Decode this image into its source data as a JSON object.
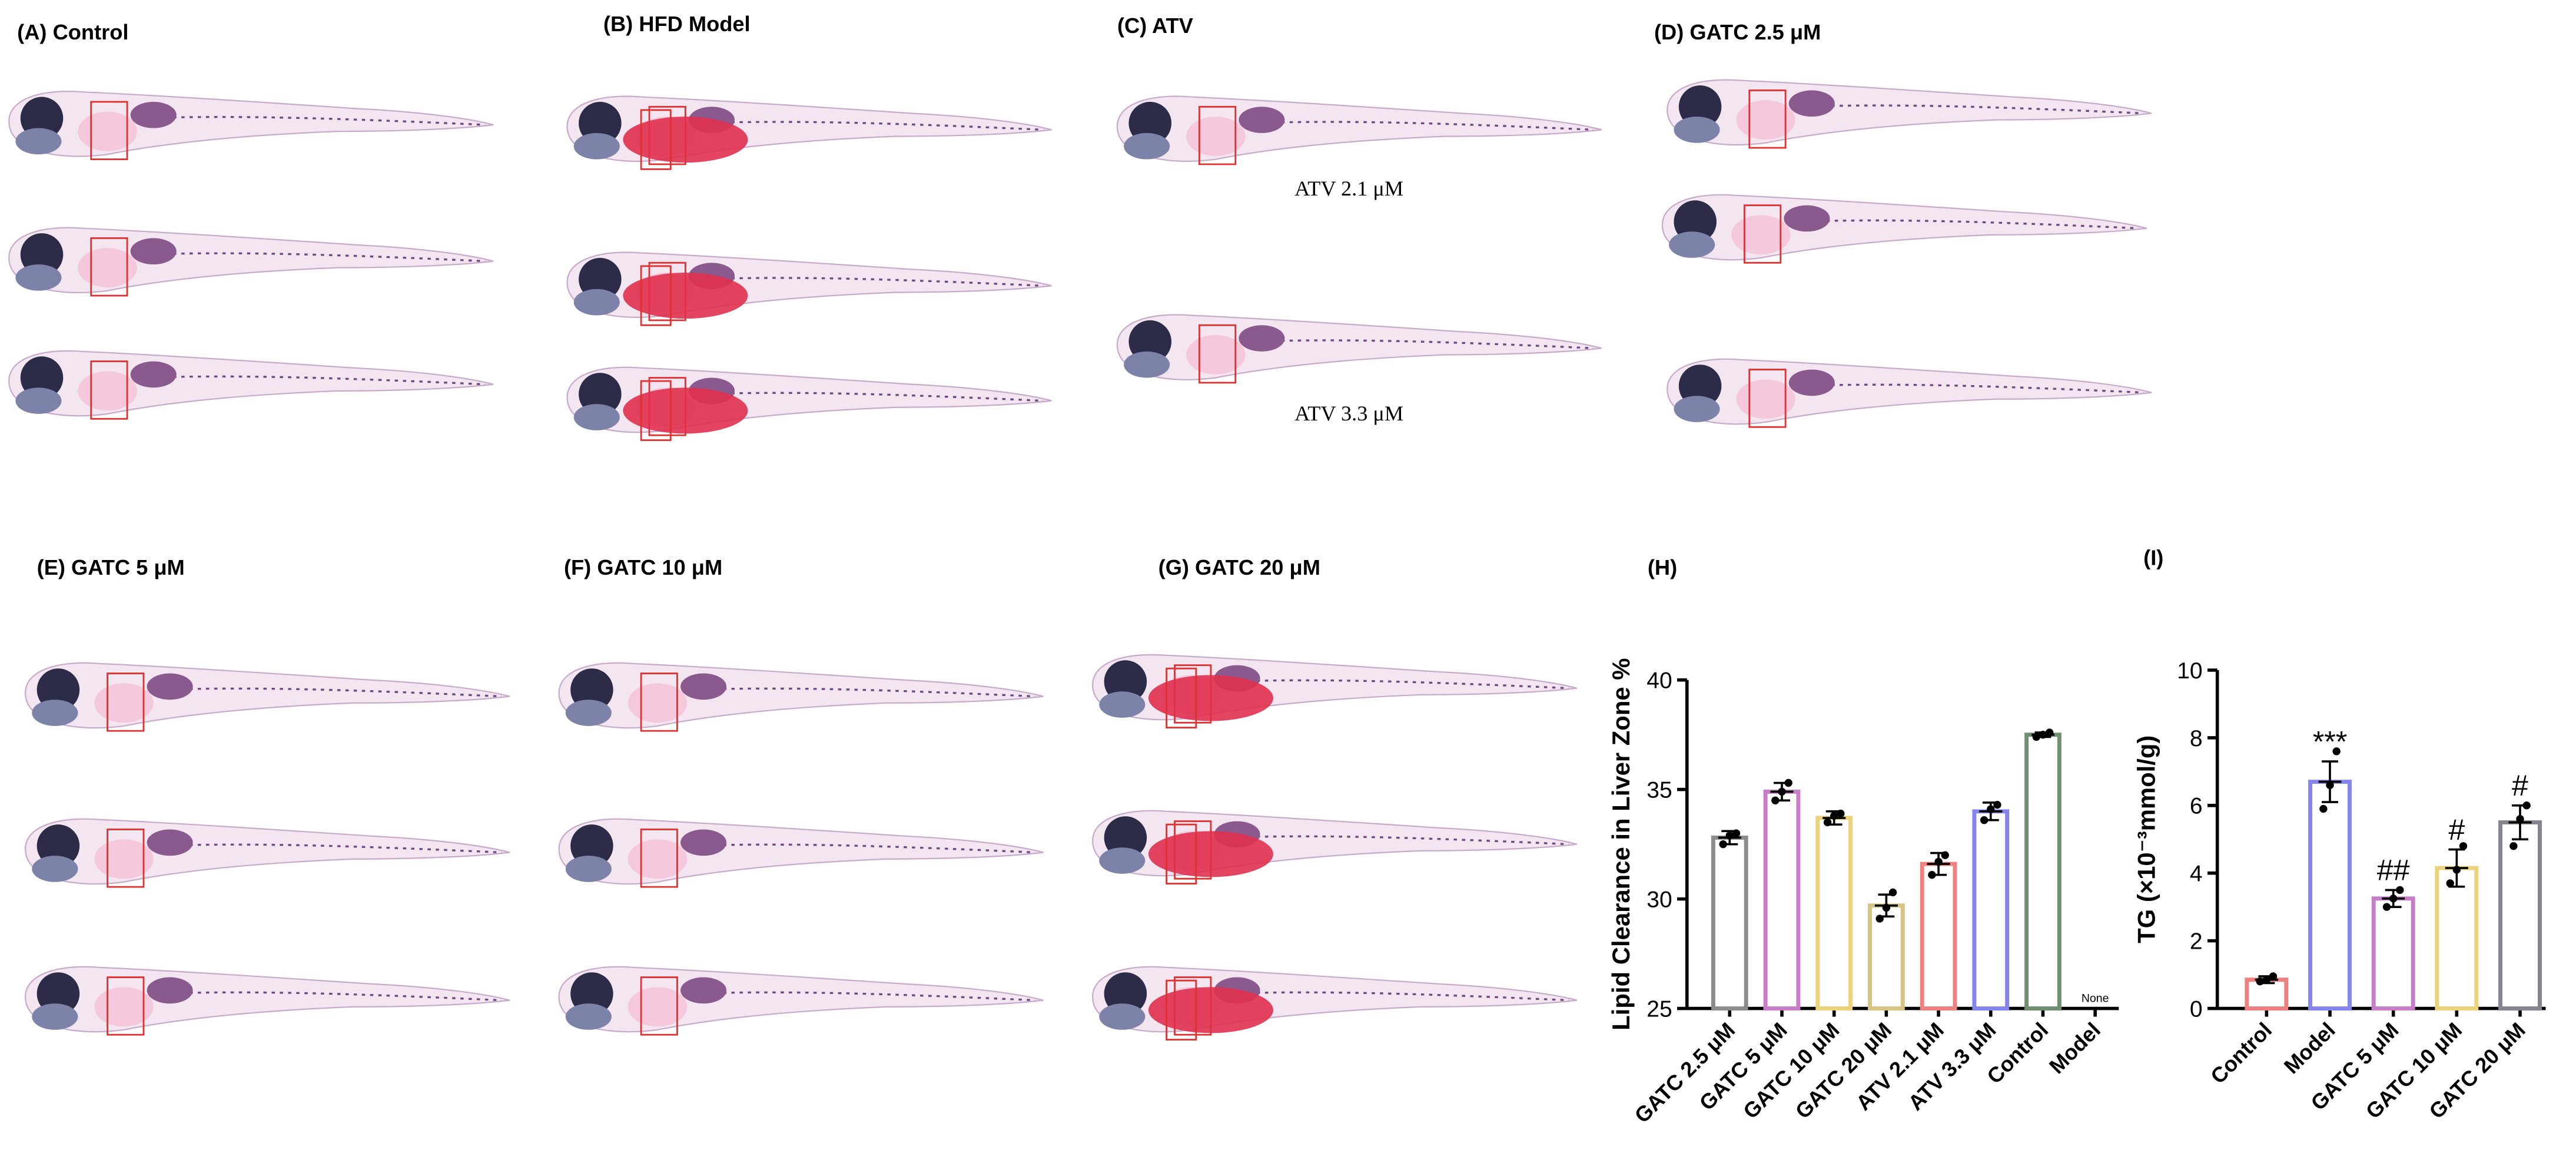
{
  "panels": [
    {
      "label": "(A) Control"
    },
    {
      "label": "(B) HFD Model"
    },
    {
      "label": "(C) ATV",
      "labels": [
        "ATV 2.1 μM",
        "ATV 3.3 μM"
      ]
    },
    {
      "label": "(D) GATC 2.5 μM"
    },
    {
      "label": "(E) GATC 5 μM"
    },
    {
      "label": "(F) GATC 10 μM"
    },
    {
      "label": "(G) GATC 20 μM"
    }
  ],
  "chart_data": [
    {
      "type": "bar",
      "title": "(H)",
      "y_label": "Lipid Clearance in Liver Zone  %",
      "categories": [
        "GATC 2.5 μM",
        "GATC 5 μM",
        "GATC 10 μM",
        "GATC 20 μM",
        "ATV 2.1 μM",
        "ATV 3.3 μM",
        "Control",
        "Model"
      ],
      "values": [
        32.8,
        34.9,
        33.7,
        29.7,
        31.6,
        34.0,
        37.5,
        null
      ],
      "errors": [
        0.3,
        0.4,
        0.3,
        0.5,
        0.5,
        0.4,
        0.1,
        null
      ],
      "points": [
        [
          32.5,
          32.9,
          33.0
        ],
        [
          34.5,
          34.9,
          35.3
        ],
        [
          33.5,
          33.8,
          33.9
        ],
        [
          29.1,
          29.6,
          30.3
        ],
        [
          31.1,
          31.7,
          32.0
        ],
        [
          33.6,
          34.1,
          34.3
        ],
        [
          37.4,
          37.5,
          37.6
        ],
        null
      ],
      "annotations": [
        null,
        null,
        null,
        null,
        null,
        null,
        null,
        "None"
      ],
      "colors": [
        "#8c8c8c",
        "#c77dc7",
        "#ecd27a",
        "#d8c482",
        "#f08080",
        "#8585ee",
        "#6f8f70",
        "#444444"
      ],
      "ylim": [
        25,
        40
      ],
      "yticks": [
        25,
        30,
        35,
        40
      ]
    },
    {
      "type": "bar",
      "title": "(I)",
      "y_label": "TG (×10⁻³mmol/g)",
      "categories": [
        "Control",
        "Model",
        "GATC 5 μM",
        "GATC 10 μM",
        "GATC 20 μM"
      ],
      "values": [
        0.85,
        6.7,
        3.25,
        4.15,
        5.5
      ],
      "errors": [
        0.1,
        0.6,
        0.25,
        0.55,
        0.5
      ],
      "points": [
        [
          0.8,
          0.85,
          0.95
        ],
        [
          5.9,
          6.6,
          7.6
        ],
        [
          3.0,
          3.25,
          3.5
        ],
        [
          3.7,
          4.1,
          4.8
        ],
        [
          4.8,
          5.6,
          6.0
        ]
      ],
      "annotations": [
        null,
        "***",
        "##",
        "#",
        "#"
      ],
      "colors": [
        "#f08080",
        "#8585ee",
        "#c77dc7",
        "#ecd27a",
        "#85858f"
      ],
      "ylim": [
        0,
        10
      ],
      "yticks": [
        0,
        2,
        4,
        6,
        8,
        10
      ]
    }
  ]
}
